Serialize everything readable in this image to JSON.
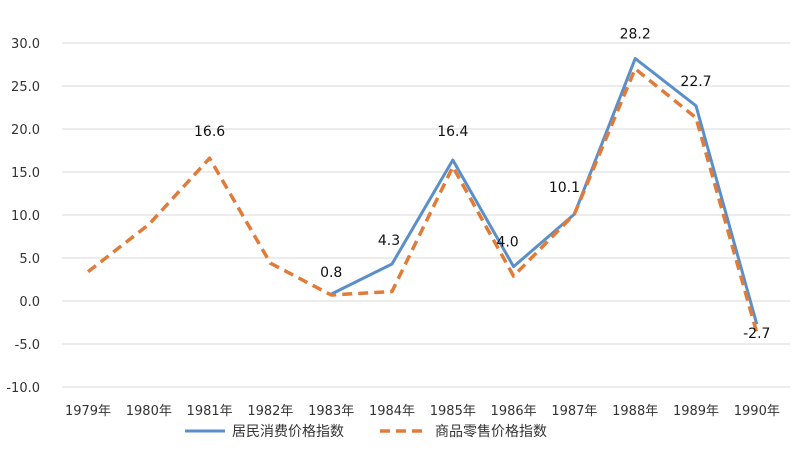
{
  "chart_data": {
    "type": "line",
    "categories": [
      "1979年",
      "1980年",
      "1981年",
      "1982年",
      "1983年",
      "1984年",
      "1985年",
      "1986年",
      "1987年",
      "1988年",
      "1989年",
      "1990年"
    ],
    "series": [
      {
        "name": "居民消费价格指数",
        "values": [
          null,
          null,
          null,
          null,
          0.8,
          4.3,
          16.4,
          4.0,
          10.1,
          28.2,
          22.7,
          -2.7
        ],
        "color": "#5b8fc9",
        "style": "solid",
        "labels": [
          null,
          null,
          null,
          null,
          "0.8",
          "4.3",
          "16.4",
          "4.0",
          "10.1",
          "28.2",
          "22.7",
          "-2.7"
        ]
      },
      {
        "name": "商品零售价格指数",
        "values": [
          3.4,
          8.9,
          16.6,
          4.4,
          0.7,
          1.1,
          15.6,
          2.9,
          10.1,
          27.0,
          21.3,
          -3.7
        ],
        "color": "#e07b39",
        "style": "dashed",
        "labels": [
          null,
          null,
          "16.6",
          null,
          null,
          null,
          null,
          null,
          null,
          null,
          null,
          null
        ]
      }
    ],
    "yticks": [
      "30.0",
      "25.0",
      "20.0",
      "15.0",
      "10.0",
      "5.0",
      "0.0",
      "-5.0",
      "-10.0"
    ],
    "ylim": [
      -10,
      30
    ],
    "grid": true,
    "legend_position": "bottom",
    "title": "",
    "xlabel": "",
    "ylabel": ""
  }
}
